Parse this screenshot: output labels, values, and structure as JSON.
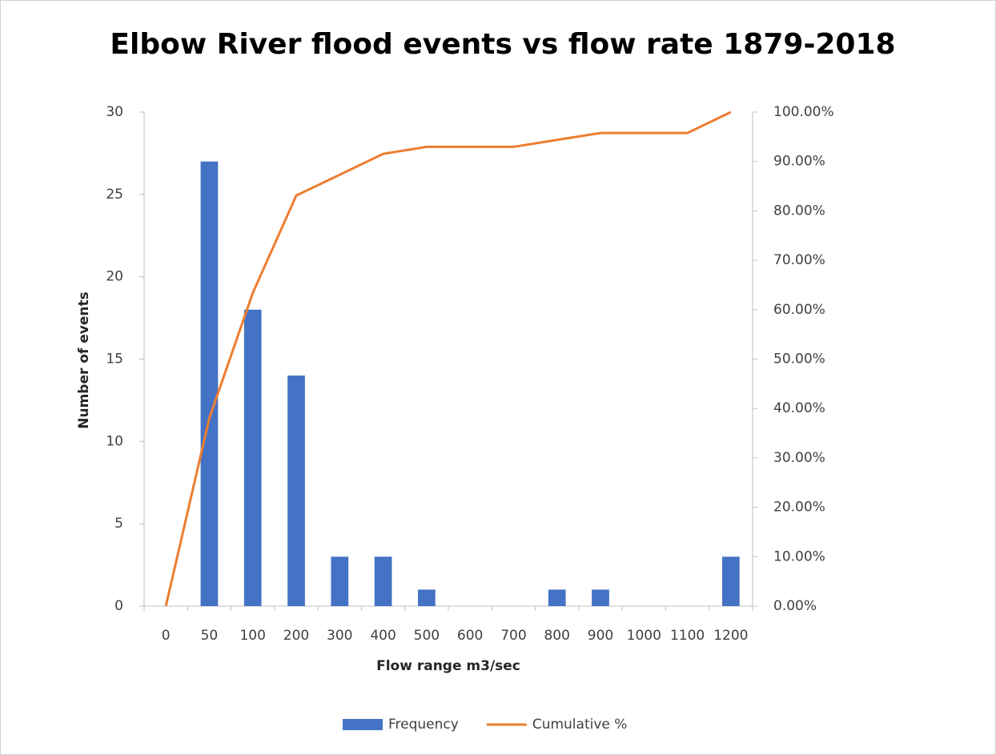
{
  "chart_data": {
    "type": "bar",
    "title": "Elbow River flood events vs flow rate 1879-2018",
    "x_label": "Flow range m3/sec",
    "y_label": "Number of events",
    "categories": [
      "0",
      "50",
      "100",
      "200",
      "300",
      "400",
      "500",
      "600",
      "700",
      "800",
      "900",
      "1000",
      "1100",
      "1200"
    ],
    "series": [
      {
        "name": "Frequency",
        "type": "bar",
        "color": "#4472c4",
        "values": [
          0,
          27,
          18,
          14,
          3,
          3,
          1,
          0,
          0,
          1,
          1,
          0,
          0,
          3
        ]
      },
      {
        "name": "Cumulative %",
        "type": "line",
        "axis": "y2",
        "color": "#ed7d31",
        "values": [
          0,
          38.03,
          63.38,
          83.1,
          87.32,
          91.55,
          92.96,
          92.96,
          92.96,
          94.37,
          95.77,
          95.77,
          95.77,
          100
        ]
      }
    ],
    "ylim": [
      0,
      30
    ],
    "yticks": [
      0,
      5,
      10,
      15,
      20,
      25,
      30
    ],
    "y2lim": [
      0,
      100
    ],
    "y2ticks": [
      {
        "value": 0,
        "label": "0.00%"
      },
      {
        "value": 10,
        "label": "10.00%"
      },
      {
        "value": 20,
        "label": "20.00%"
      },
      {
        "value": 30,
        "label": "30.00%"
      },
      {
        "value": 40,
        "label": "40.00%"
      },
      {
        "value": 50,
        "label": "50.00%"
      },
      {
        "value": 60,
        "label": "60.00%"
      },
      {
        "value": 70,
        "label": "70.00%"
      },
      {
        "value": 80,
        "label": "80.00%"
      },
      {
        "value": 90,
        "label": "90.00%"
      },
      {
        "value": 100,
        "label": "100.00%"
      }
    ],
    "grid": false,
    "legend": "bottom"
  }
}
